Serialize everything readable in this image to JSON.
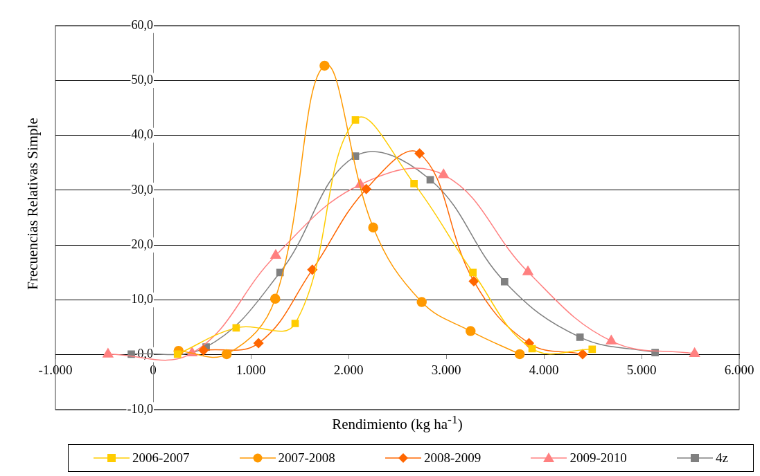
{
  "chart_data": {
    "type": "line",
    "xlabel": "Rendimiento (kg ha$^{-1}$)",
    "ylabel": "Frecuencias Relativas Simple",
    "xlim": [
      -1000,
      6000
    ],
    "xticks": [
      {
        "value": -1000,
        "label": "-1.000"
      },
      0,
      {
        "value": 1000,
        "label": "1.000"
      },
      {
        "value": 2000,
        "label": "2.000"
      },
      {
        "value": 3000,
        "label": "3.000"
      },
      {
        "value": 4000,
        "label": "4.000"
      },
      {
        "value": 5000,
        "label": "5.000"
      },
      {
        "value": 6000,
        "label": "6.000"
      }
    ],
    "ylim": [
      -10,
      60
    ],
    "yticks": [
      {
        "value": -10,
        "label": "-10,0"
      },
      {
        "value": 0,
        "label": "0,0"
      },
      {
        "value": 10,
        "label": "10,0"
      },
      {
        "value": 20,
        "label": "20,0"
      },
      {
        "value": 30,
        "label": "30,0"
      },
      {
        "value": 40,
        "label": "40,0"
      },
      {
        "value": 50,
        "label": "50,0"
      },
      {
        "value": 60,
        "label": "60,0"
      }
    ],
    "grid": "y",
    "legend": "bottom",
    "series": [
      {
        "name": "2006-2007",
        "color": "#ffcc00",
        "marker": "square",
        "x": [
          250,
          850,
          1454,
          2071,
          2671,
          3274,
          3880,
          4495
        ],
        "values": [
          0.1,
          4.9,
          5.7,
          42.8,
          31.2,
          15.0,
          1.1,
          1.0
        ]
      },
      {
        "name": "2007-2008",
        "color": "#ff9900",
        "marker": "circle",
        "x": [
          261,
          753,
          1250,
          1755,
          2253,
          2750,
          3250,
          3753
        ],
        "values": [
          0.7,
          0.1,
          10.2,
          52.7,
          23.2,
          9.6,
          4.3,
          0.1
        ]
      },
      {
        "name": "2008-2009",
        "color": "#ff6600",
        "marker": "diamond",
        "x": [
          516,
          1079,
          1630,
          2182,
          2728,
          3283,
          3848,
          4397
        ],
        "values": [
          0.8,
          2.1,
          15.5,
          30.2,
          36.7,
          13.4,
          2.1,
          0.1
        ]
      },
      {
        "name": "2009-2010",
        "color": "#ff8080",
        "marker": "triangle",
        "x": [
          -462,
          399,
          1255,
          2120,
          2973,
          3837,
          4690,
          5543
        ],
        "values": [
          0.1,
          0.3,
          18.1,
          31.0,
          32.8,
          15.1,
          2.5,
          0.2
        ]
      },
      {
        "name": "4z",
        "color": "#808080",
        "marker": "square",
        "x": [
          -223,
          543,
          1299,
          2071,
          2837,
          3598,
          4370,
          5139
        ],
        "values": [
          0.1,
          1.4,
          15.0,
          36.2,
          31.9,
          13.3,
          3.2,
          0.4
        ]
      }
    ]
  }
}
